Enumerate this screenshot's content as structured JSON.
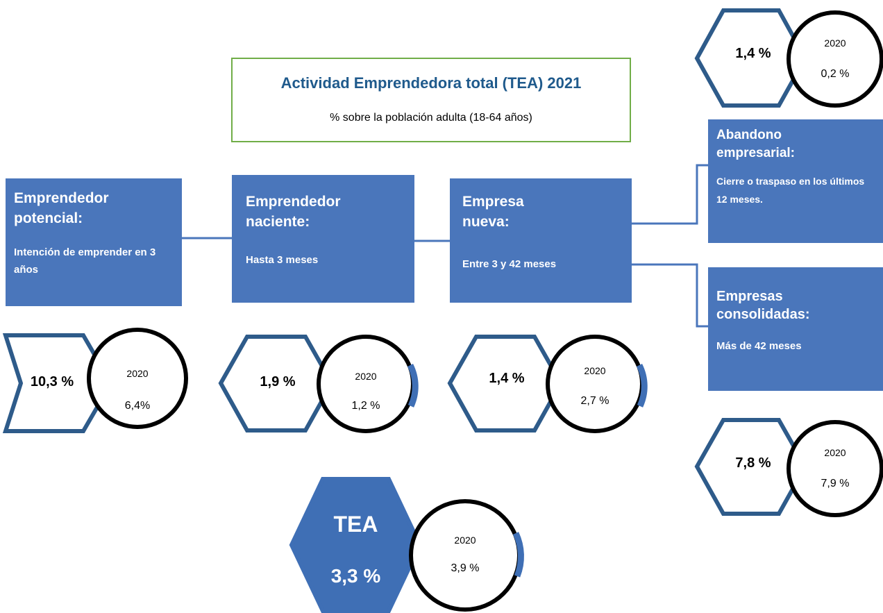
{
  "title": "Actividad Emprendedora total (TEA) 2021",
  "subtitle": "% sobre la población adulta (18-64 años)",
  "stages": [
    {
      "heading": "Emprendedor potencial:",
      "description": "Intención de emprender en 3 años",
      "value": "10,3 %",
      "prior_year": "2020",
      "prior_value": "6,4%"
    },
    {
      "heading": "Emprendedor naciente:",
      "description": "Hasta 3 meses",
      "value": "1,9 %",
      "prior_year": "2020",
      "prior_value": "1,2 %"
    },
    {
      "heading": "Empresa nueva:",
      "description": "Entre 3 y 42 meses",
      "value": "1,4 %",
      "prior_year": "2020",
      "prior_value": "2,7 %"
    },
    {
      "heading": "Abandono empresarial:",
      "description": "Cierre o traspaso en los últimos 12 meses.",
      "value": "1,4 %",
      "prior_year": "2020",
      "prior_value": "0,2 %"
    },
    {
      "heading": "Empresas consolidadas:",
      "description": "Más de 42 meses",
      "value": "7,8 %",
      "prior_year": "2020",
      "prior_value": "7,9 %"
    }
  ],
  "tea": {
    "label": "TEA",
    "value": "3,3 %",
    "prior_year": "2020",
    "prior_value": "3,9 %"
  }
}
